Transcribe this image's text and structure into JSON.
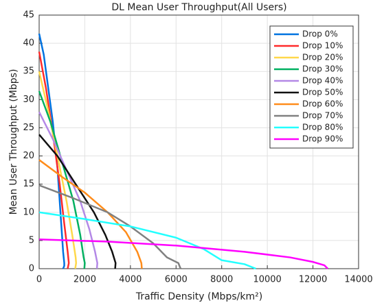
{
  "chart_data": {
    "type": "line",
    "title": "DL Mean User Throughput(All Users)",
    "xlabel": "Traffic Density (Mbps/km²)",
    "ylabel": "Mean User Throughput (Mbps)",
    "xlim": [
      0,
      14000
    ],
    "ylim": [
      0,
      45
    ],
    "xticks": [
      0,
      2000,
      4000,
      6000,
      8000,
      10000,
      12000,
      14000
    ],
    "yticks": [
      0,
      5,
      10,
      15,
      20,
      25,
      30,
      35,
      40,
      45
    ],
    "grid": true,
    "legend": "northeast",
    "series": [
      {
        "name": "Drop 0%",
        "color": "#0072e0",
        "x": [
          0,
          200,
          400,
          600,
          800,
          900,
          1000,
          1050,
          1100,
          1100,
          1050
        ],
        "values": [
          41.7,
          38,
          32,
          26,
          18,
          12,
          6,
          3,
          1,
          0.5,
          0
        ]
      },
      {
        "name": "Drop 10%",
        "color": "#ff2a2a",
        "x": [
          0,
          300,
          600,
          900,
          1100,
          1250,
          1300,
          1250
        ],
        "values": [
          38.5,
          32,
          24,
          15,
          8,
          3,
          1,
          0
        ]
      },
      {
        "name": "Drop 20%",
        "color": "#ffd84a",
        "x": [
          0,
          400,
          800,
          1200,
          1450,
          1600,
          1620,
          1580
        ],
        "values": [
          35,
          28,
          20,
          12,
          6,
          2,
          1,
          0
        ]
      },
      {
        "name": "Drop 30%",
        "color": "#00b060",
        "x": [
          0,
          500,
          1000,
          1500,
          1800,
          1950,
          2000,
          1980
        ],
        "values": [
          31.5,
          26,
          19,
          12,
          6,
          2,
          1,
          0
        ]
      },
      {
        "name": "Drop 40%",
        "color": "#b388e6",
        "x": [
          0,
          600,
          1200,
          1800,
          2200,
          2450,
          2550,
          2530
        ],
        "values": [
          27.8,
          23,
          17.5,
          12,
          7,
          3,
          1,
          0
        ]
      },
      {
        "name": "Drop 50%",
        "color": "#111111",
        "x": [
          0,
          800,
          1600,
          2400,
          2900,
          3200,
          3350,
          3330
        ],
        "values": [
          23.8,
          20,
          15,
          10,
          6,
          3,
          1,
          0
        ]
      },
      {
        "name": "Drop 60%",
        "color": "#ff8c1a",
        "x": [
          0,
          1000,
          2000,
          3000,
          3800,
          4300,
          4480,
          4500
        ],
        "values": [
          19.3,
          16.3,
          13.5,
          10,
          6.5,
          3,
          1,
          0
        ]
      },
      {
        "name": "Drop 70%",
        "color": "#808080",
        "x": [
          0,
          1500,
          3000,
          4000,
          5000,
          5600,
          6100,
          6200
        ],
        "values": [
          14.8,
          12.5,
          10,
          7.5,
          4.5,
          2,
          1,
          0
        ]
      },
      {
        "name": "Drop 80%",
        "color": "#22ffff",
        "x": [
          0,
          2000,
          4000,
          6000,
          7200,
          8000,
          9000,
          9500
        ],
        "values": [
          10,
          8.8,
          7.5,
          5.5,
          3.5,
          1.5,
          0.8,
          0
        ]
      },
      {
        "name": "Drop 90%",
        "color": "#ff00ff",
        "x": [
          0,
          3000,
          6000,
          9000,
          11000,
          12000,
          12500,
          12650
        ],
        "values": [
          5.2,
          4.8,
          4.1,
          3,
          2,
          1.2,
          0.6,
          0
        ]
      }
    ]
  }
}
